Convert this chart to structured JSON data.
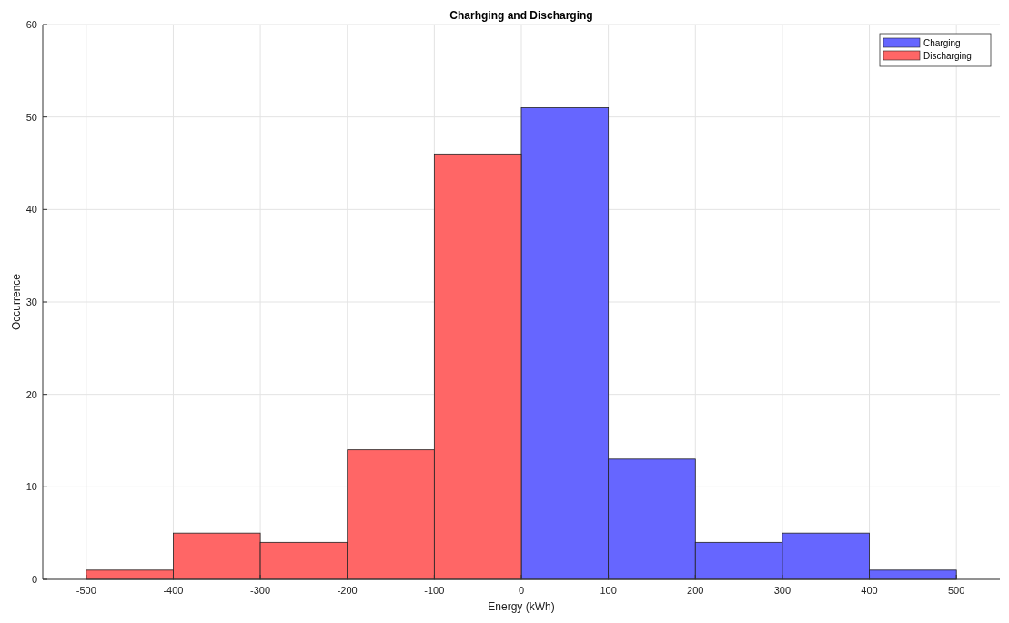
{
  "chart_data": {
    "type": "histogram",
    "title": "Charhging and Discharging",
    "xlabel": "Energy (kWh)",
    "ylabel": "Occurrence",
    "bins": [
      -500,
      -400,
      -300,
      -200,
      -100,
      0,
      100,
      200,
      300,
      400,
      500
    ],
    "series": [
      {
        "name": "Charging",
        "color": "#6666ff",
        "values": [
          null,
          null,
          null,
          null,
          null,
          51,
          13,
          4,
          5,
          1
        ]
      },
      {
        "name": "Discharging",
        "color": "#ff6666",
        "values": [
          1,
          5,
          4,
          14,
          46,
          null,
          null,
          null,
          null,
          null
        ]
      }
    ],
    "xlim": [
      -550,
      550
    ],
    "xticks": [
      -500,
      -400,
      -300,
      -200,
      -100,
      0,
      100,
      200,
      300,
      400,
      500
    ],
    "ylim": [
      0,
      60
    ],
    "yticks": [
      0,
      10,
      20,
      30,
      40,
      50,
      60
    ],
    "grid": true,
    "legend": "top right"
  }
}
